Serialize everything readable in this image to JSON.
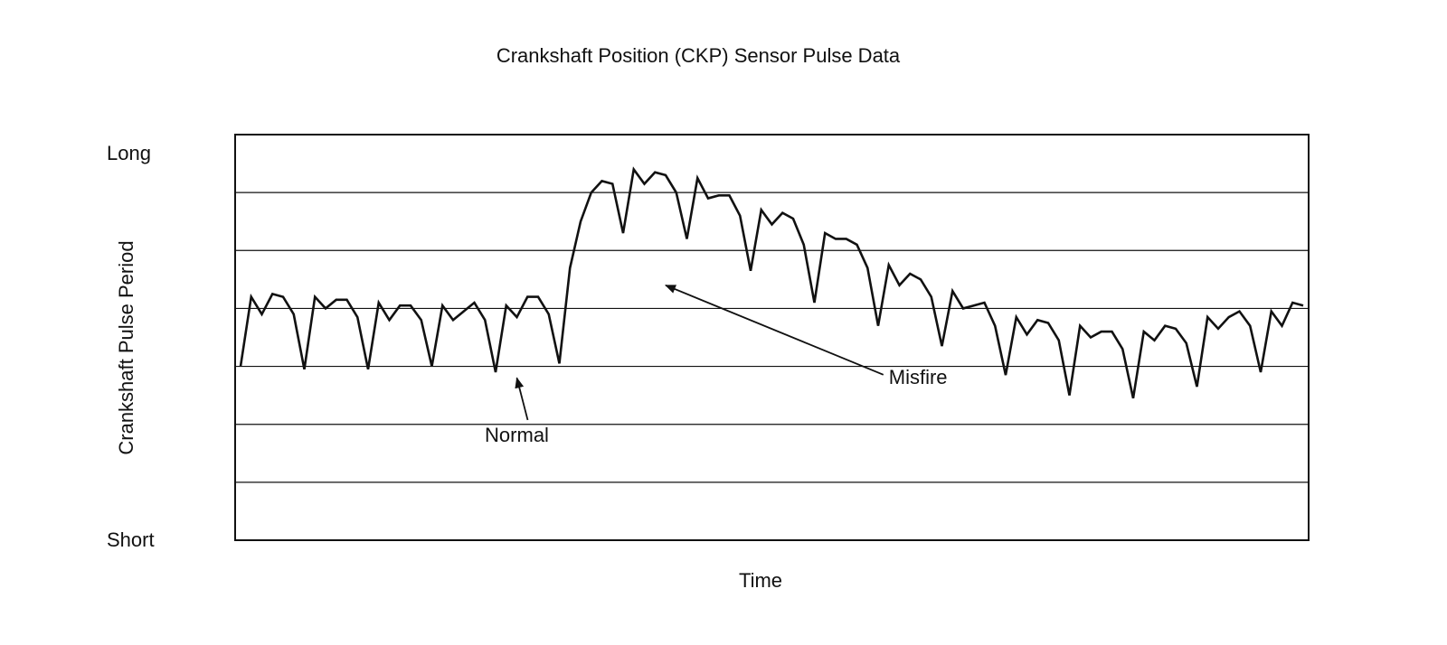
{
  "chart_data": {
    "type": "line",
    "title": "Crankshaft Position (CKP) Sensor Pulse Data",
    "xlabel": "Time",
    "ylabel": "Crankshaft Pulse Period",
    "y_tick_top": "Long",
    "y_tick_bottom": "Short",
    "ylim": [
      0,
      7
    ],
    "xlim": [
      0,
      100
    ],
    "grid": "horizontal",
    "gridlines": [
      1,
      2,
      3,
      4,
      5,
      6
    ],
    "line_color": "#111111",
    "series": [
      {
        "x": [
          0,
          1,
          2,
          3,
          4,
          5,
          6,
          7,
          8,
          9,
          10,
          11,
          12,
          13,
          14,
          15,
          16,
          17,
          18,
          19,
          20,
          21,
          22,
          23,
          24,
          25,
          26,
          27,
          28,
          29,
          30,
          31,
          32,
          33,
          34,
          35,
          36,
          37,
          38,
          39,
          40,
          41,
          42,
          43,
          44,
          45,
          46,
          47,
          48,
          49,
          50,
          51,
          52,
          53,
          54,
          55,
          56,
          57,
          58,
          59,
          60,
          61,
          62,
          63,
          64,
          65,
          66,
          67,
          68,
          69,
          70,
          71,
          72,
          73,
          74,
          75,
          76,
          77,
          78,
          79,
          80,
          81,
          82,
          83,
          84,
          85,
          86,
          87,
          88,
          89,
          90,
          91,
          92,
          93,
          94,
          95,
          96,
          97,
          98,
          99,
          100
        ],
        "values": [
          3.0,
          4.2,
          3.9,
          4.25,
          4.2,
          3.9,
          2.95,
          4.2,
          4.0,
          4.15,
          4.15,
          3.85,
          2.95,
          4.1,
          3.8,
          4.05,
          4.05,
          3.8,
          3.0,
          4.05,
          3.8,
          3.95,
          4.1,
          3.8,
          2.9,
          4.05,
          3.85,
          4.2,
          4.2,
          3.9,
          3.05,
          4.7,
          5.5,
          6.0,
          6.2,
          6.15,
          5.3,
          6.4,
          6.15,
          6.35,
          6.3,
          6.0,
          5.2,
          6.25,
          5.9,
          5.95,
          5.95,
          5.6,
          4.65,
          5.7,
          5.45,
          5.65,
          5.55,
          5.1,
          4.1,
          5.3,
          5.2,
          5.2,
          5.1,
          4.7,
          3.7,
          4.75,
          4.4,
          4.6,
          4.5,
          4.2,
          3.35,
          4.3,
          4.0,
          4.05,
          4.1,
          3.7,
          2.85,
          3.85,
          3.55,
          3.8,
          3.75,
          3.45,
          2.5,
          3.7,
          3.5,
          3.6,
          3.6,
          3.3,
          2.45,
          3.6,
          3.45,
          3.7,
          3.65,
          3.4,
          2.65,
          3.85,
          3.65,
          3.85,
          3.95,
          3.7,
          2.9,
          3.95,
          3.7,
          4.1,
          4.05
        ]
      }
    ],
    "annotations": [
      {
        "text": "Normal",
        "target_x": 26,
        "target_y": 2.8,
        "text_x": 26,
        "text_y": 1.7
      },
      {
        "text": "Misfire",
        "target_x": 40,
        "target_y": 4.4,
        "text_x": 61,
        "text_y": 2.7
      }
    ]
  }
}
